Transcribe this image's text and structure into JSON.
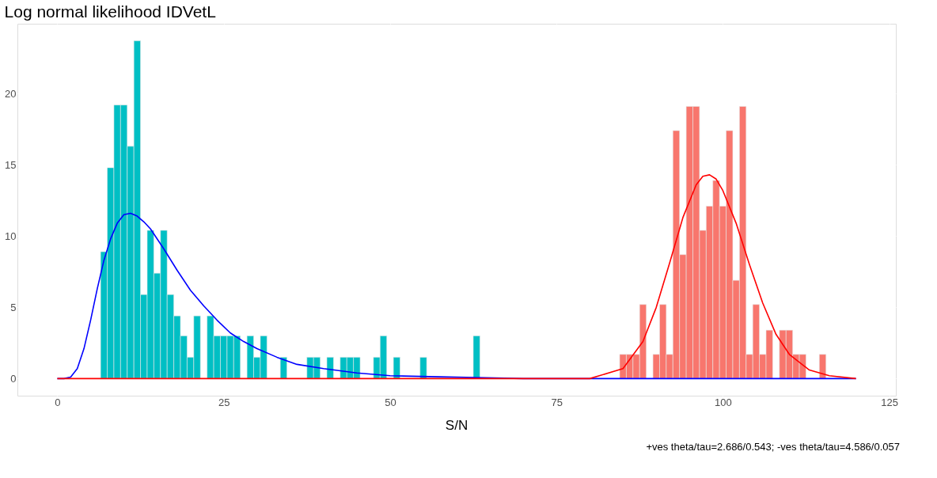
{
  "chart_data": {
    "type": "histogram",
    "title": "Log normal likelihood IDVetL",
    "xlabel": "S/N",
    "annotations": [
      "+ves theta/tau=2.686/0.543; -ves theta/tau=4.586/0.057"
    ],
    "xlim": [
      -6,
      126
    ],
    "ylim": [
      -1.2,
      24.9
    ],
    "xticks": [
      0,
      25,
      50,
      75,
      100,
      125
    ],
    "yticks": [
      0,
      5,
      10,
      15,
      20
    ],
    "grid": true,
    "series": [
      {
        "color": "#00bfc4",
        "bins": [
          6.5,
          7.5,
          8.5,
          9.5,
          10.5,
          11.5,
          12.5,
          13.5,
          14.5,
          15.5,
          16.5,
          17.5,
          18.5,
          19.5,
          20.5,
          21.5,
          22.5,
          23.5,
          24.5,
          25.5,
          26.5,
          27.5,
          28.5,
          29.5,
          30.5,
          31.5,
          32.5,
          33.5,
          34.5,
          35.5,
          36.5,
          37.5,
          38.5,
          39.5,
          40.5,
          41.5,
          42.5,
          43.5,
          44.5,
          45.5,
          46.5,
          47.5,
          48.5,
          49.5,
          50.5,
          51.5,
          52.5,
          53.5,
          54.5,
          55.5,
          56.5,
          57.5,
          58.5,
          59.5,
          60.5,
          61.5,
          62.5,
          63.5
        ],
        "values": [
          8.9,
          14.8,
          19.2,
          19.2,
          16.3,
          23.7,
          5.9,
          10.4,
          7.4,
          10.4,
          5.9,
          4.4,
          3.0,
          1.5,
          4.4,
          null,
          4.4,
          3.0,
          3.0,
          3.0,
          3.0,
          null,
          3.0,
          1.5,
          3.0,
          null,
          null,
          1.5,
          null,
          null,
          null,
          1.5,
          1.5,
          null,
          1.5,
          null,
          1.5,
          1.5,
          1.5,
          null,
          null,
          1.5,
          3.0,
          null,
          1.5,
          null,
          null,
          null,
          1.5,
          null,
          null,
          null,
          null,
          null,
          null,
          null,
          3.0
        ]
      },
      {
        "color": "#f8766d",
        "bins": [
          84.5,
          85.5,
          86.5,
          87.5,
          88.5,
          89.5,
          90.5,
          91.5,
          92.5,
          93.5,
          94.5,
          95.5,
          96.5,
          97.5,
          98.5,
          99.5,
          100.5,
          101.5,
          102.5,
          103.5,
          104.5,
          105.5,
          106.5,
          107.5,
          108.5,
          109.5,
          110.5,
          111.5,
          112.5,
          113.5,
          114.5,
          115.5
        ],
        "values": [
          1.7,
          1.7,
          1.7,
          5.2,
          null,
          1.7,
          5.2,
          1.7,
          17.4,
          8.7,
          19.1,
          19.1,
          10.4,
          12.1,
          13.9,
          12.1,
          17.4,
          6.9,
          19.1,
          1.7,
          5.2,
          1.7,
          3.4,
          null,
          3.4,
          3.4,
          1.7,
          1.7,
          null,
          null,
          1.7
        ]
      },
      {
        "type": "line",
        "color": "#0000ff",
        "x": [
          0,
          1,
          2,
          3,
          4,
          5,
          6,
          7,
          8,
          9,
          10,
          11,
          12,
          13,
          14,
          16,
          18,
          20,
          22,
          24,
          26,
          28,
          30,
          33,
          36,
          40,
          45,
          50,
          60,
          70,
          80,
          90,
          100,
          110,
          120
        ],
        "values": [
          0,
          0,
          0.1,
          0.7,
          2.1,
          4.1,
          6.3,
          8.3,
          9.8,
          10.9,
          11.5,
          11.6,
          11.4,
          11.0,
          10.5,
          9.1,
          7.6,
          6.2,
          5.1,
          4.1,
          3.2,
          2.6,
          2.1,
          1.5,
          1.0,
          0.7,
          0.4,
          0.2,
          0.1,
          0,
          0,
          0,
          0,
          0,
          0
        ]
      },
      {
        "type": "line",
        "color": "#ff0000",
        "x": [
          0,
          25,
          50,
          75,
          80,
          85,
          88,
          90,
          92,
          94,
          96,
          97,
          98,
          99,
          100,
          102,
          104,
          106,
          108,
          110,
          113,
          116,
          120
        ],
        "values": [
          0,
          0,
          0,
          0,
          0,
          0.7,
          2.6,
          5.0,
          8.1,
          11.3,
          13.6,
          14.2,
          14.3,
          14.0,
          13.2,
          10.9,
          8.0,
          5.3,
          3.1,
          1.7,
          0.6,
          0.2,
          0
        ]
      }
    ]
  }
}
